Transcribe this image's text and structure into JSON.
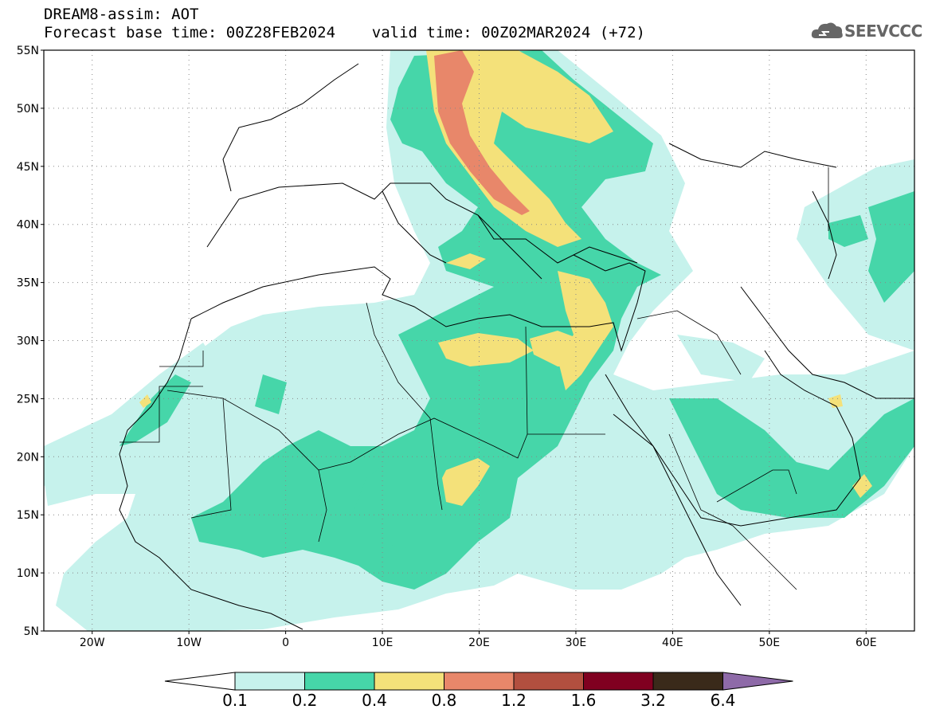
{
  "header": {
    "line1": "DREAM8-assim: AOT",
    "line2": "Forecast base time: 00Z28FEB2024    valid time: 00Z02MAR2024 (+72)"
  },
  "logo": {
    "text": "SEEVCCC",
    "icon": "cloud-icon"
  },
  "map": {
    "lon_range": [
      -25,
      65
    ],
    "lat_range": [
      5,
      55
    ],
    "lat_labels": [
      "55N",
      "50N",
      "45N",
      "40N",
      "35N",
      "30N",
      "25N",
      "20N",
      "15N",
      "10N",
      "5N"
    ],
    "lon_labels": [
      "20W",
      "10W",
      "0",
      "10E",
      "20E",
      "30E",
      "40E",
      "50E",
      "60E"
    ],
    "gridlines": "dotted"
  },
  "colorbar": {
    "labels": [
      "0.1",
      "0.2",
      "0.4",
      "0.8",
      "1.2",
      "1.6",
      "3.2",
      "6.4"
    ],
    "colors": [
      "#ffffff",
      "#c6f2ec",
      "#46d6a9",
      "#f4e17a",
      "#e8876a",
      "#b24f3f",
      "#800020",
      "#3a2a1a",
      "#8e6aa8"
    ]
  }
}
